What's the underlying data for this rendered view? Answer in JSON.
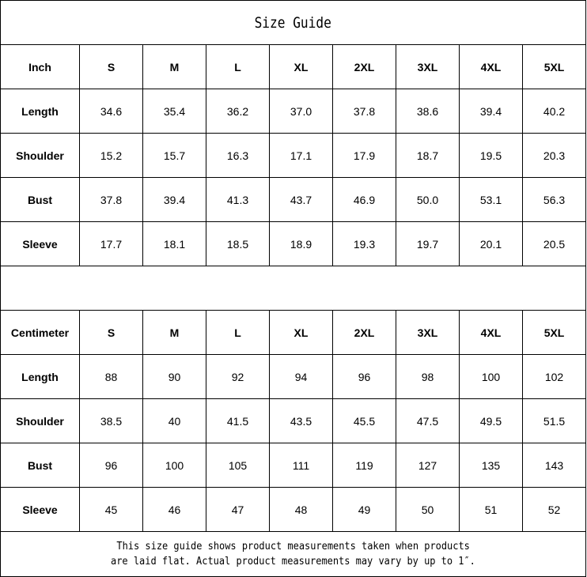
{
  "title": "Size Guide",
  "sizes": [
    "S",
    "M",
    "L",
    "XL",
    "2XL",
    "3XL",
    "4XL",
    "5XL"
  ],
  "tables": [
    {
      "unit": "Inch",
      "rows": [
        {
          "label": "Length",
          "values": [
            "34.6",
            "35.4",
            "36.2",
            "37.0",
            "37.8",
            "38.6",
            "39.4",
            "40.2"
          ]
        },
        {
          "label": "Shoulder",
          "values": [
            "15.2",
            "15.7",
            "16.3",
            "17.1",
            "17.9",
            "18.7",
            "19.5",
            "20.3"
          ]
        },
        {
          "label": "Bust",
          "values": [
            "37.8",
            "39.4",
            "41.3",
            "43.7",
            "46.9",
            "50.0",
            "53.1",
            "56.3"
          ]
        },
        {
          "label": "Sleeve",
          "values": [
            "17.7",
            "18.1",
            "18.5",
            "18.9",
            "19.3",
            "19.7",
            "20.1",
            "20.5"
          ]
        }
      ]
    },
    {
      "unit": "Centimeter",
      "rows": [
        {
          "label": "Length",
          "values": [
            "88",
            "90",
            "92",
            "94",
            "96",
            "98",
            "100",
            "102"
          ]
        },
        {
          "label": "Shoulder",
          "values": [
            "38.5",
            "40",
            "41.5",
            "43.5",
            "45.5",
            "47.5",
            "49.5",
            "51.5"
          ]
        },
        {
          "label": "Bust",
          "values": [
            "96",
            "100",
            "105",
            "111",
            "119",
            "127",
            "135",
            "143"
          ]
        },
        {
          "label": "Sleeve",
          "values": [
            "45",
            "46",
            "47",
            "48",
            "49",
            "50",
            "51",
            "52"
          ]
        }
      ]
    }
  ],
  "note": {
    "line1": "This size guide shows product measurements taken when products",
    "line2": "are laid flat. Actual product measurements may vary by up to 1″."
  }
}
